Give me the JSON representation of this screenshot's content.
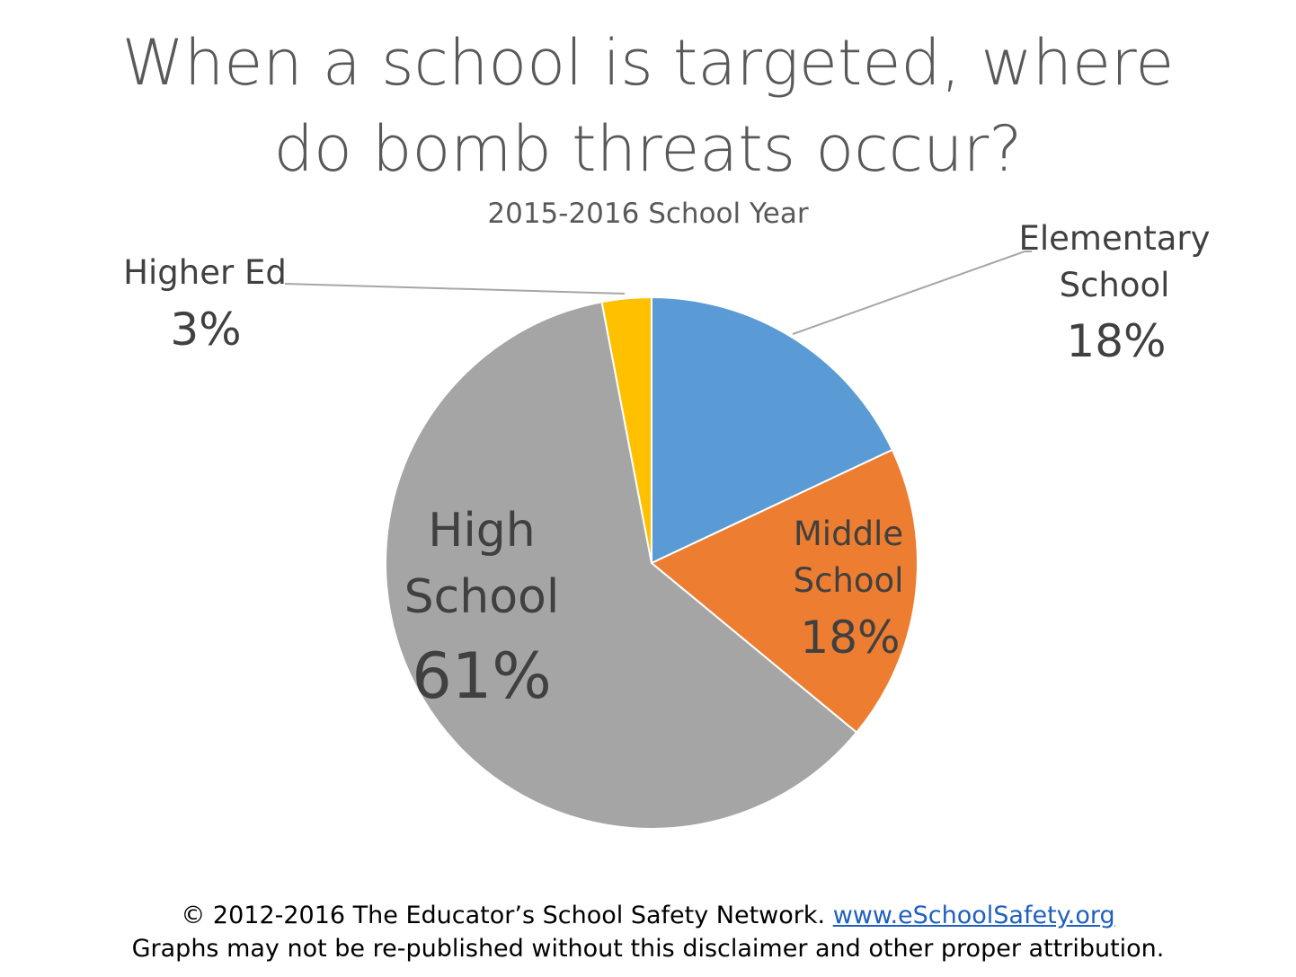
{
  "chart_data": {
    "type": "pie",
    "title": [
      "When a school is targeted, where",
      "do bomb threats occur?"
    ],
    "subtitle": "2015-2016 School Year",
    "slices": [
      {
        "label_lines": [
          "Elementary",
          "School"
        ],
        "value": 18,
        "value_label": "18%",
        "color": "#5b9bd5"
      },
      {
        "label_lines": [
          "Middle",
          "School"
        ],
        "value": 18,
        "value_label": "18%",
        "color": "#ed7d31"
      },
      {
        "label_lines": [
          "High",
          "School"
        ],
        "value": 61,
        "value_label": "61%",
        "color": "#a5a5a5"
      },
      {
        "label_lines": [
          "Higher Ed"
        ],
        "value": 3,
        "value_label": "3%",
        "color": "#ffc000"
      }
    ]
  },
  "footer": {
    "copyright": "© 2012-2016 The Educator’s School Safety Network.",
    "link_text": "www.eSchoolSafety.org",
    "disclaimer": "Graphs may not be re-published without this disclaimer and other proper attribution."
  }
}
